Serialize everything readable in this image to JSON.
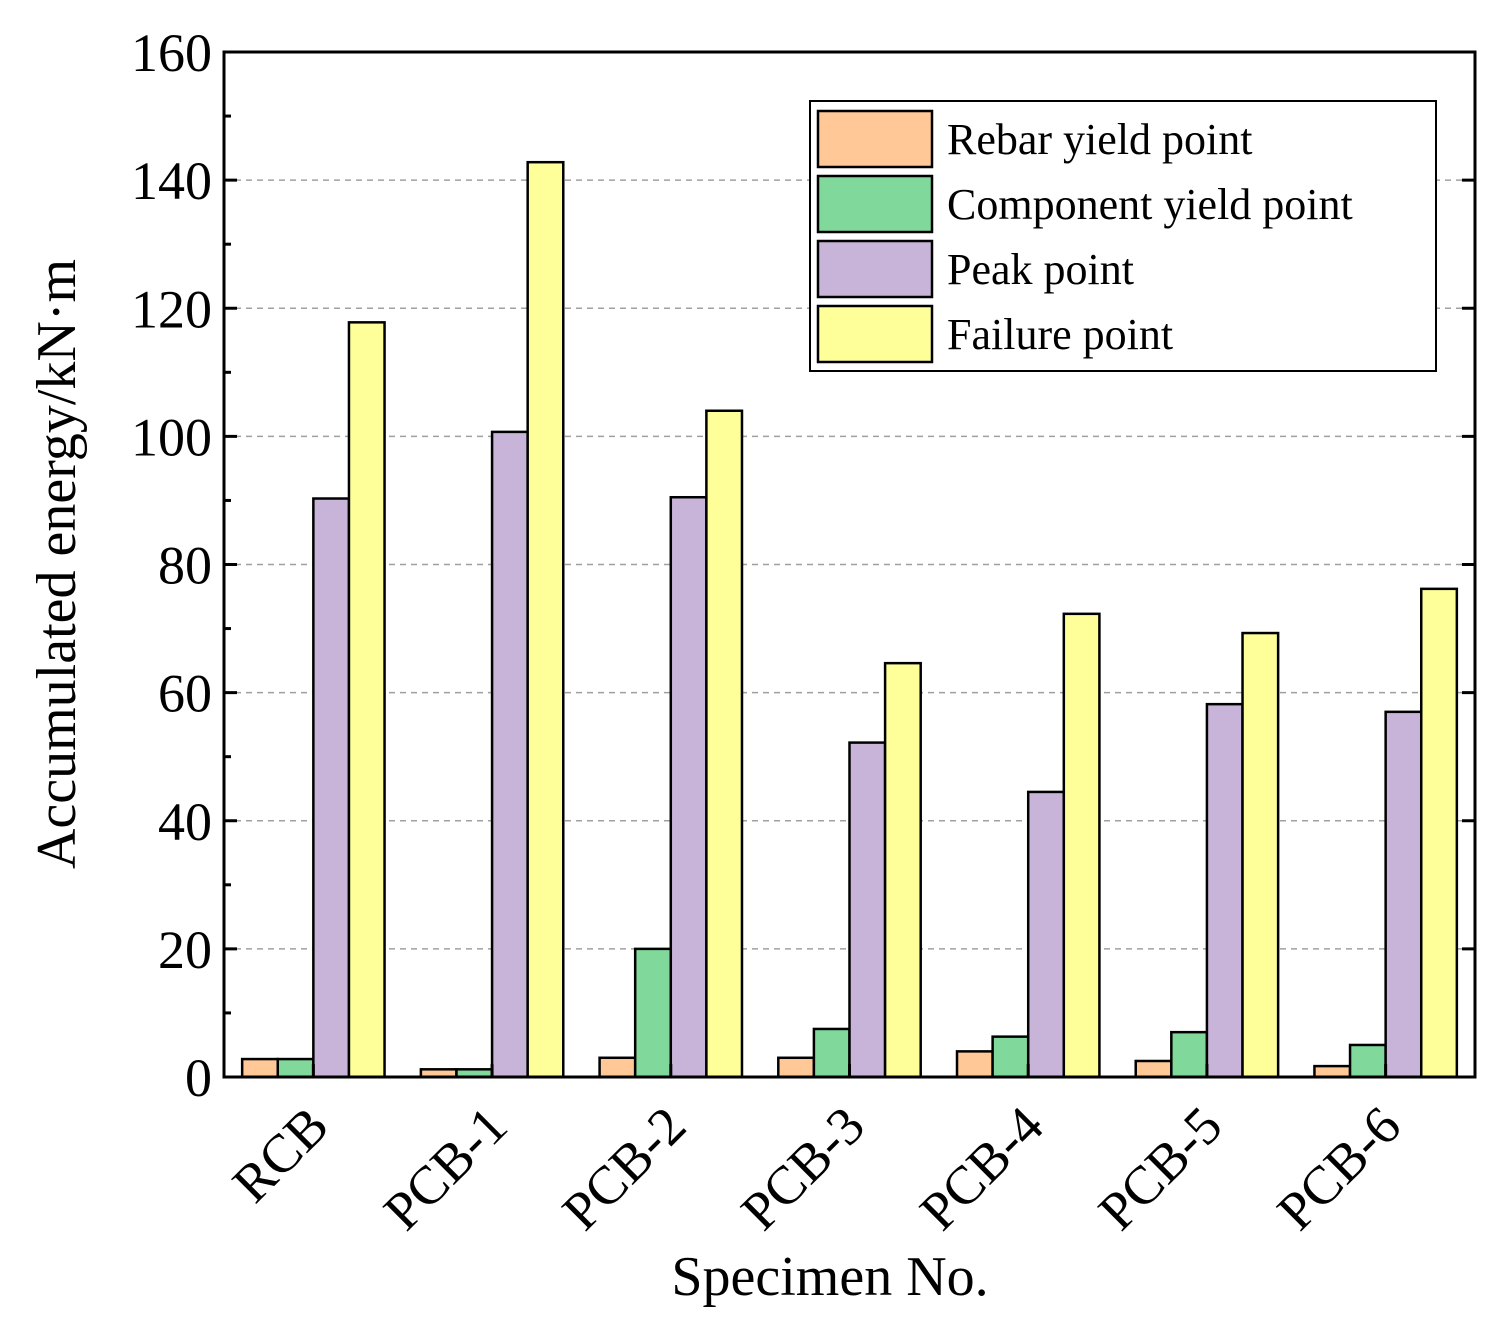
{
  "chart_data": {
    "type": "bar",
    "title": "",
    "xlabel": "Specimen No.",
    "ylabel": "Accumulated energy/kN·m",
    "ylim": [
      0,
      160
    ],
    "yticks": [
      0,
      20,
      40,
      60,
      80,
      100,
      120,
      140,
      160
    ],
    "grid": "horizontal dashed",
    "legend_position": "top-right",
    "categories": [
      "RCB",
      "PCB-1",
      "PCB-2",
      "PCB-3",
      "PCB-4",
      "PCB-5",
      "PCB-6"
    ],
    "series": [
      {
        "name": "Rebar yield point",
        "color": "#ffc896",
        "values": [
          2.8,
          1.2,
          3.0,
          3.0,
          4.0,
          2.5,
          1.7
        ]
      },
      {
        "name": "Component yield point",
        "color": "#80d99a",
        "values": [
          2.8,
          1.2,
          20.0,
          7.5,
          6.3,
          7.0,
          5.0
        ]
      },
      {
        "name": "Peak point",
        "color": "#c8b4d8",
        "values": [
          90.3,
          100.7,
          90.5,
          52.2,
          44.5,
          58.2,
          57.0
        ]
      },
      {
        "name": "Failure point",
        "color": "#ffff99",
        "values": [
          117.8,
          142.8,
          104.0,
          64.6,
          72.3,
          69.3,
          76.2
        ]
      }
    ]
  }
}
